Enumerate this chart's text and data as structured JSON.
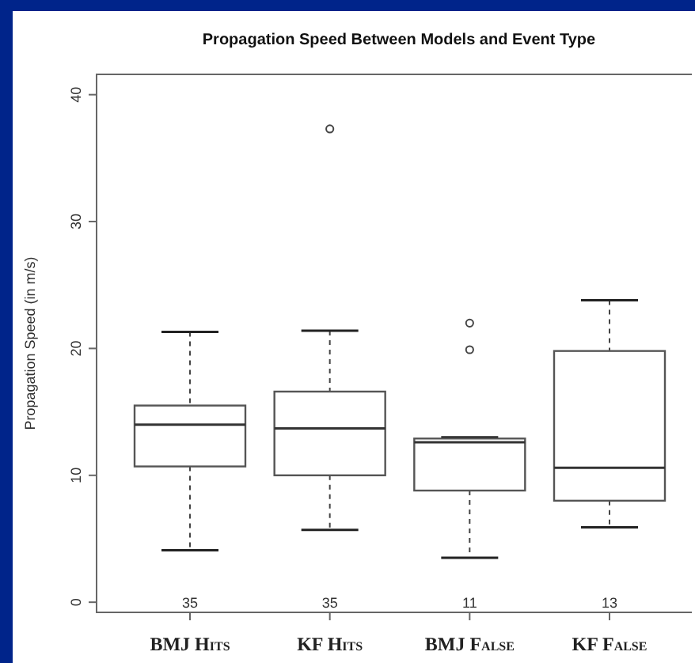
{
  "chart_data": {
    "type": "box",
    "title": "Propagation Speed Between Models and Event Type",
    "ylabel": "Propagation Speed (in m/s)",
    "categories": [
      "BMJ Hits",
      "KF Hits",
      "BMJ False",
      "KF False"
    ],
    "boxes": [
      {
        "low": 4.1,
        "q1": 10.7,
        "median": 14.0,
        "q3": 15.5,
        "high": 21.3
      },
      {
        "low": 5.7,
        "q1": 10.0,
        "median": 13.7,
        "q3": 16.6,
        "high": 21.4,
        "outliers": [
          37.3
        ]
      },
      {
        "low": 3.5,
        "q1": 8.8,
        "median": 12.6,
        "q3": 12.9,
        "high": 13.0,
        "outliers": [
          19.9,
          22.0
        ]
      },
      {
        "low": 5.9,
        "q1": 8.0,
        "median": 10.6,
        "q3": 19.8,
        "high": 23.8
      }
    ],
    "ylim": [
      -0.8,
      41.6
    ],
    "yticks": [
      0,
      10,
      20,
      30,
      40
    ],
    "grid": false,
    "annotations": [
      "35",
      "35",
      "11",
      "13"
    ]
  }
}
